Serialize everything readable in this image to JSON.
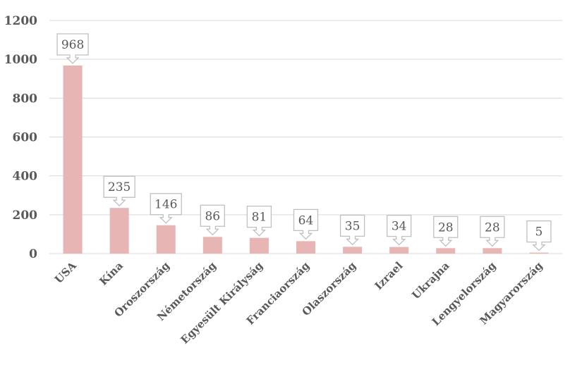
{
  "chart_data": {
    "type": "bar",
    "categories": [
      "USA",
      "Kína",
      "Oroszország",
      "Németország",
      "Egyesült Királyság",
      "Franciaország",
      "Olaszország",
      "Izrael",
      "Ukrajna",
      "Lengyelország",
      "Magyarország"
    ],
    "values": [
      968,
      235,
      146,
      86,
      81,
      64,
      35,
      34,
      28,
      28,
      5
    ],
    "data_labels": [
      "968",
      "235",
      "146",
      "86",
      "81",
      "64",
      "35",
      "34",
      "28",
      "28",
      "5"
    ],
    "ylim": [
      0,
      1200
    ],
    "yticks": [
      0,
      200,
      400,
      600,
      800,
      1000,
      1200
    ],
    "ytick_labels": [
      "0",
      "200",
      "400",
      "600",
      "800",
      "1000",
      "1200"
    ],
    "grid": true,
    "legend": "none",
    "bar_color": "#e6b5b4"
  }
}
